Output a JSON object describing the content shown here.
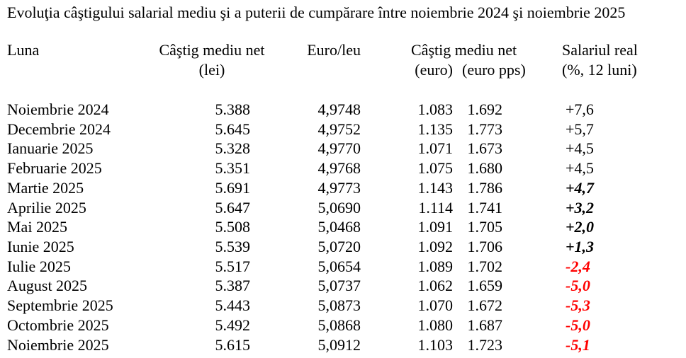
{
  "title": "Evoluţia câştigului salarial mediu şi a puterii de cumpărare între noiembrie 2024 şi noiembrie 2025",
  "colors": {
    "background": "#ffffff",
    "text": "#000000",
    "negative_value": "#ff0000"
  },
  "table": {
    "headers": {
      "luna": "Luna",
      "lei_line1": "Câştig mediu net",
      "lei_line2": "(lei)",
      "eurleu": "Euro/leu",
      "euro_line1": "Câştig mediu net",
      "euro_sub": "(euro)",
      "europps_sub": "(euro pps)",
      "real_line1": "Salariul real",
      "real_line2": "(%, 12 luni)"
    },
    "rows": [
      {
        "luna": "Noiembrie 2024",
        "lei": "5.388",
        "eurleu": "4,9748",
        "euro": "1.083",
        "europps": "1.692",
        "real": "+7,6",
        "emphasis": "none"
      },
      {
        "luna": "Decembrie 2024",
        "lei": "5.645",
        "eurleu": "4,9752",
        "euro": "1.135",
        "europps": "1.773",
        "real": "+5,7",
        "emphasis": "none"
      },
      {
        "luna": "Ianuarie 2025",
        "lei": "5.328",
        "eurleu": "4,9770",
        "euro": "1.071",
        "europps": "1.673",
        "real": "+4,5",
        "emphasis": "none"
      },
      {
        "luna": "Februarie 2025",
        "lei": "5.351",
        "eurleu": "4,9768",
        "euro": "1.075",
        "europps": "1.680",
        "real": "+4,5",
        "emphasis": "none"
      },
      {
        "luna": "Martie 2025",
        "lei": "5.691",
        "eurleu": "4,9773",
        "euro": "1.143",
        "europps": "1.786",
        "real": "+4,7",
        "emphasis": "bold-italic"
      },
      {
        "luna": "Aprilie 2025",
        "lei": "5.647",
        "eurleu": "5,0690",
        "euro": "1.114",
        "europps": "1.741",
        "real": "+3,2",
        "emphasis": "bold-italic"
      },
      {
        "luna": "Mai 2025",
        "lei": "5.508",
        "eurleu": "5,0468",
        "euro": "1.091",
        "europps": "1.705",
        "real": "+2,0",
        "emphasis": "bold-italic"
      },
      {
        "luna": "Iunie 2025",
        "lei": "5.539",
        "eurleu": "5,0720",
        "euro": "1.092",
        "europps": "1.706",
        "real": "+1,3",
        "emphasis": "bold-italic"
      },
      {
        "luna": "Iulie 2025",
        "lei": "5.517",
        "eurleu": "5,0654",
        "euro": "1.089",
        "europps": "1.702",
        "real": "-2,4",
        "emphasis": "bold-italic-red"
      },
      {
        "luna": "August 2025",
        "lei": "5.387",
        "eurleu": "5,0737",
        "euro": "1.062",
        "europps": "1.659",
        "real": "-5,0",
        "emphasis": "bold-italic-red"
      },
      {
        "luna": "Septembrie 2025",
        "lei": "5.443",
        "eurleu": "5,0873",
        "euro": "1.070",
        "europps": "1.672",
        "real": "-5,3",
        "emphasis": "bold-italic-red"
      },
      {
        "luna": "Octombrie 2025",
        "lei": "5.492",
        "eurleu": "5,0868",
        "euro": "1.080",
        "europps": "1.687",
        "real": "-5,0",
        "emphasis": "bold-italic-red"
      },
      {
        "luna": "Noiembrie 2025",
        "lei": "5.615",
        "eurleu": "5,0912",
        "euro": "1.103",
        "europps": "1.723",
        "real": "-5,1",
        "emphasis": "bold-italic-red"
      }
    ]
  }
}
